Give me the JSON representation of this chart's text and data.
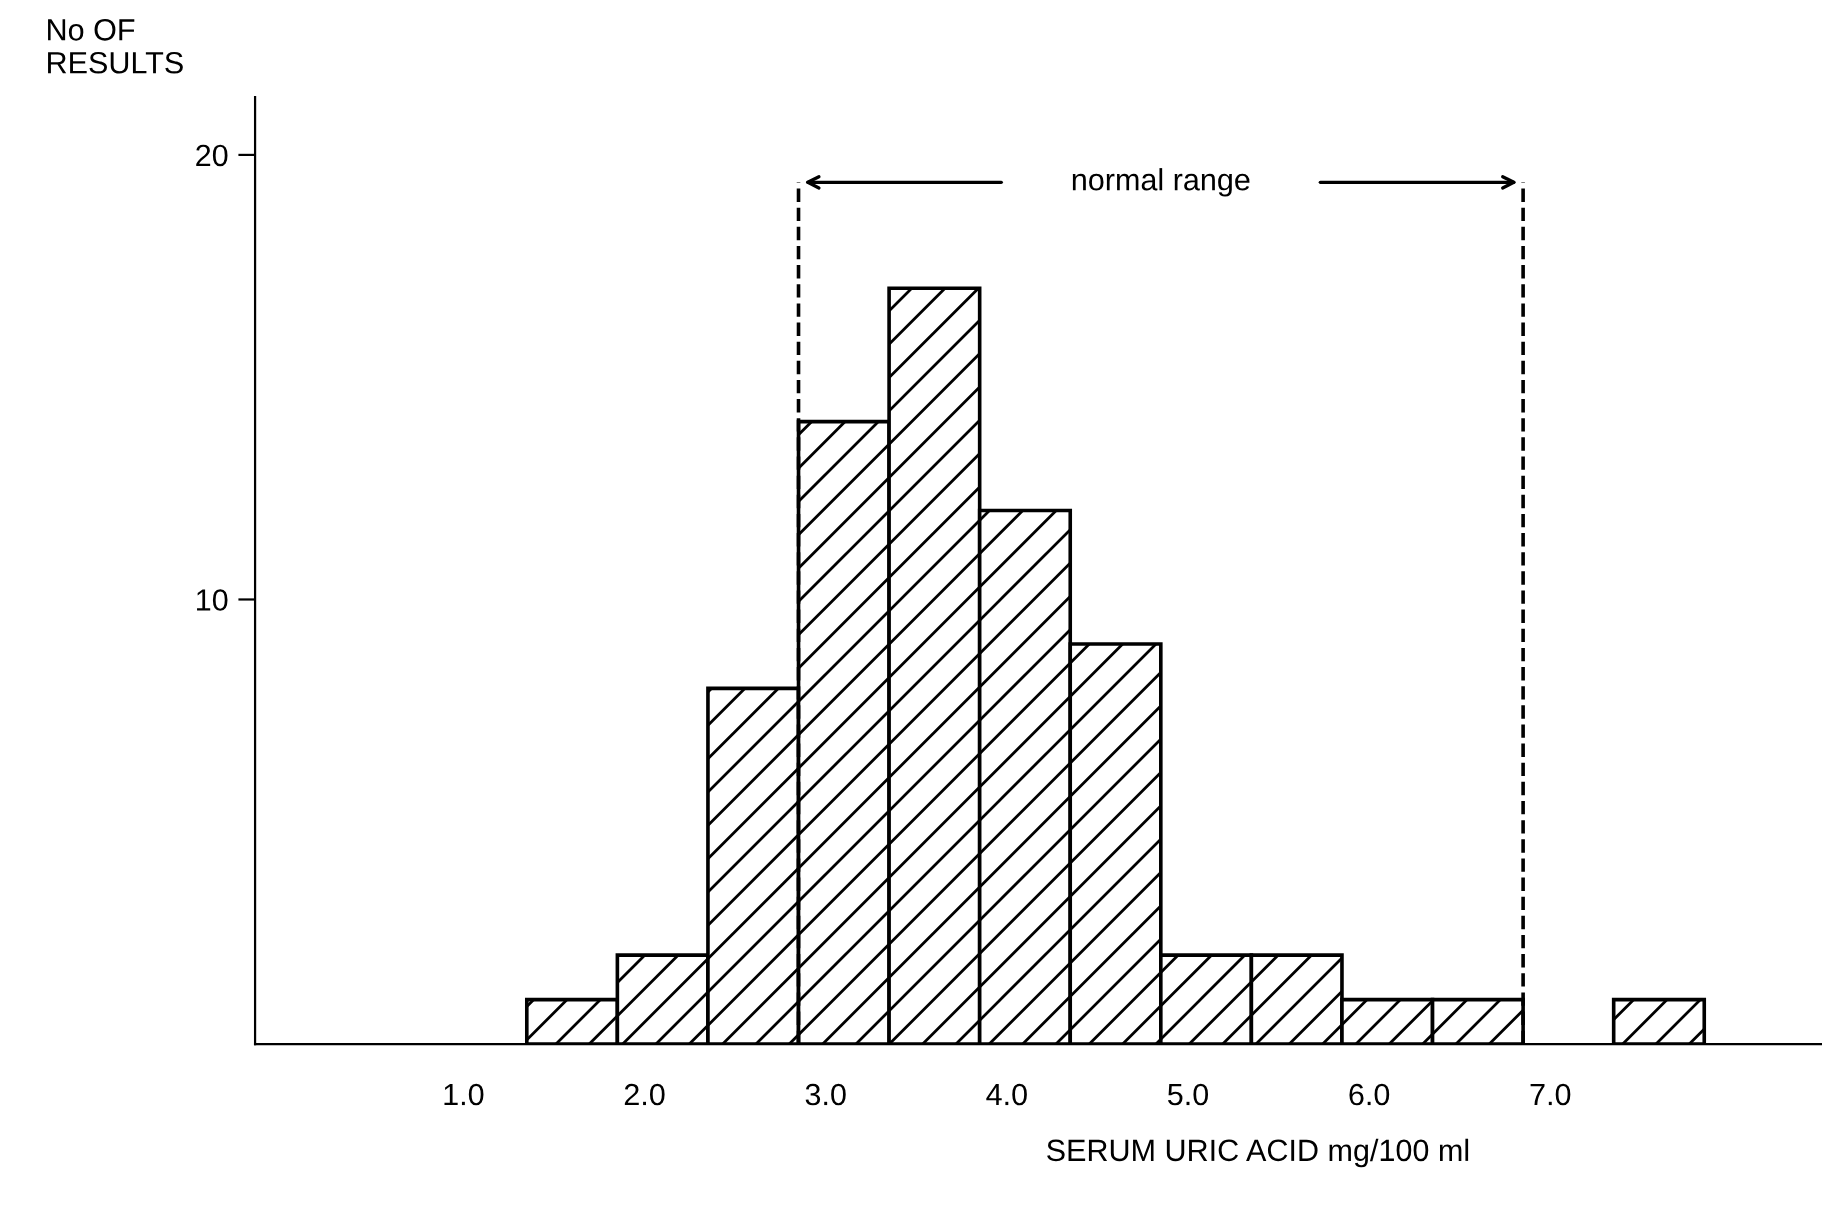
{
  "chart_data": {
    "type": "histogram",
    "ylabel": "No OF\nRESULTS",
    "xlabel": "SERUM URIC ACID mg/100 ml",
    "bins": [
      1.35,
      1.85,
      2.35,
      2.85,
      3.35,
      3.85,
      4.35,
      4.85,
      5.35,
      5.85,
      6.35,
      6.85,
      7.35,
      7.85
    ],
    "values": [
      1,
      2,
      8,
      14,
      17,
      12,
      9,
      2,
      2,
      1,
      1,
      0,
      1
    ],
    "color": "#000000",
    "xlim": [
      -0.15,
      8.5
    ],
    "ylim": [
      0,
      21.3
    ],
    "xticks": [
      {
        "value": 1,
        "label": "1.0"
      },
      {
        "value": 2,
        "label": "2.0"
      },
      {
        "value": 3,
        "label": "3.0"
      },
      {
        "value": 4,
        "label": "4.0"
      },
      {
        "value": 5,
        "label": "5.0"
      },
      {
        "value": 6,
        "label": "6.0"
      },
      {
        "value": 7,
        "label": "7.0"
      }
    ],
    "yticks": [
      10,
      20
    ],
    "ref_lines": [
      {
        "axis": "x",
        "value": 2.85,
        "line_style": "dashed"
      },
      {
        "axis": "x",
        "value": 6.85,
        "line_style": "dashed"
      }
    ],
    "annotations": [
      "normal range"
    ],
    "grid": false
  }
}
